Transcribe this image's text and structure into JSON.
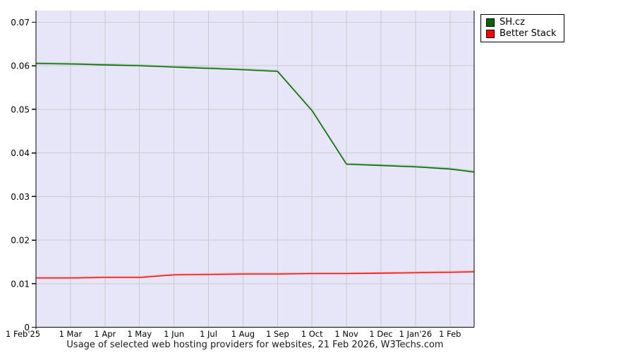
{
  "title": "Usage of selected web hosting providers for websites, 21 Feb 2026, W3Techs.com",
  "legend": {
    "items": [
      {
        "label": "SH.cz",
        "color": "#006400"
      },
      {
        "label": "Better Stack",
        "color": "#ff0000"
      }
    ]
  },
  "chart_data": {
    "type": "line",
    "title": "Usage of selected web hosting providers for websites, 21 Feb 2026, W3Techs.com",
    "x_tick_labels": [
      "1 Feb'25",
      "1 Mar",
      "1 Apr",
      "1 May",
      "1 Jun",
      "1 Jul",
      "1 Aug",
      "1 Sep",
      "1 Oct",
      "1 Nov",
      "1 Dec",
      "1 Jan'26",
      "1 Feb"
    ],
    "x_end_label": "21 Feb 2026",
    "y_tick_labels": [
      "0",
      "0.01",
      "0.02",
      "0.03",
      "0.04",
      "0.05",
      "0.06",
      "0.07"
    ],
    "y_tick_values": [
      0,
      0.01,
      0.02,
      0.03,
      0.04,
      0.05,
      0.06,
      0.07
    ],
    "ylim": [
      0,
      0.07
    ],
    "grid": true,
    "legend_position": "outside-top-right",
    "plot_background": "#e6e6f8",
    "gridline_color": "#c9c9d2",
    "axis_color": "#000000",
    "series": [
      {
        "name": "SH.cz",
        "color": "#006400",
        "glow_color": "#a3c9a3",
        "values": [
          0.0605,
          0.0604,
          0.0602,
          0.06,
          0.0597,
          0.0594,
          0.0591,
          0.0587,
          0.0497,
          0.0374,
          0.0371,
          0.0368,
          0.0363,
          0.0356
        ]
      },
      {
        "name": "Better Stack",
        "color": "#ff0000",
        "glow_color": "#ffb3b3",
        "values": [
          0.0113,
          0.0113,
          0.0114,
          0.0114,
          0.012,
          0.0121,
          0.0122,
          0.0122,
          0.0123,
          0.0123,
          0.0124,
          0.0125,
          0.0126,
          0.0127
        ]
      }
    ]
  }
}
